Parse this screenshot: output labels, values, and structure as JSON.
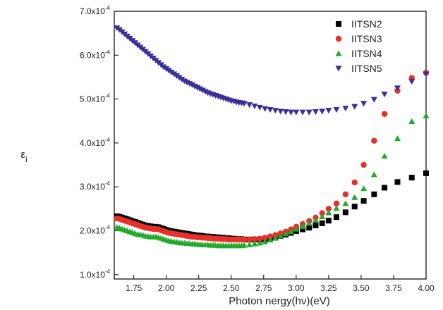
{
  "chart_data": {
    "type": "scatter",
    "xlabel": "Photon nergy(hν)(eV)",
    "ylabel": "ε",
    "ylabel_sub": "i",
    "xlim": [
      1.6,
      4.0
    ],
    "ylim": [
      9e-05,
      0.0007
    ],
    "xticks": [
      1.75,
      2.0,
      2.25,
      2.5,
      2.75,
      3.0,
      3.25,
      3.5,
      3.75,
      4.0
    ],
    "xtick_labels": [
      "1.75",
      "2.00",
      "2.25",
      "2.50",
      "2.75",
      "3.00",
      "3.25",
      "3.50",
      "3.75",
      "4.00"
    ],
    "yticks": [
      0.0001,
      0.0002,
      0.0003,
      0.0004,
      0.0005,
      0.0006,
      0.0007
    ],
    "ytick_labels": [
      {
        "mant": "1.0x10",
        "exp": "-4"
      },
      {
        "mant": "2.0x10",
        "exp": "-4"
      },
      {
        "mant": "3.0x10",
        "exp": "-4"
      },
      {
        "mant": "4.0x10",
        "exp": "-4"
      },
      {
        "mant": "5.0x10",
        "exp": "-4"
      },
      {
        "mant": "6.0x10",
        "exp": "-4"
      },
      {
        "mant": "7.0x10",
        "exp": "-4"
      }
    ],
    "legend_position": "top-right",
    "series": [
      {
        "name": "IITSN2",
        "marker": "square",
        "color": "#000000",
        "x": [
          1.62,
          1.64,
          1.66,
          1.68,
          1.7,
          1.72,
          1.74,
          1.76,
          1.78,
          1.8,
          1.82,
          1.84,
          1.86,
          1.88,
          1.9,
          1.92,
          1.94,
          1.96,
          1.98,
          2.0,
          2.02,
          2.04,
          2.06,
          2.08,
          2.1,
          2.12,
          2.14,
          2.16,
          2.18,
          2.2,
          2.22,
          2.24,
          2.26,
          2.28,
          2.3,
          2.32,
          2.34,
          2.36,
          2.38,
          2.4,
          2.42,
          2.44,
          2.46,
          2.48,
          2.5,
          2.52,
          2.54,
          2.56,
          2.58,
          2.6,
          2.64,
          2.68,
          2.72,
          2.76,
          2.8,
          2.84,
          2.88,
          2.92,
          2.96,
          3.0,
          3.05,
          3.1,
          3.15,
          3.2,
          3.25,
          3.31,
          3.38,
          3.45,
          3.52,
          3.6,
          3.68,
          3.78,
          3.89,
          4.0
        ],
        "y": [
          0.000233,
          0.000232,
          0.00023,
          0.000228,
          0.000226,
          0.000224,
          0.000222,
          0.00022,
          0.000218,
          0.000216,
          0.000214,
          0.000212,
          0.000211,
          0.00021,
          0.000209,
          0.000209,
          0.000208,
          0.000206,
          0.000204,
          0.000202,
          0.0002,
          0.000199,
          0.000198,
          0.000197,
          0.000196,
          0.000195,
          0.000194,
          0.000193,
          0.000192,
          0.000191,
          0.00019,
          0.000189,
          0.000189,
          0.000188,
          0.000187,
          0.000187,
          0.000186,
          0.000186,
          0.000185,
          0.000185,
          0.000184,
          0.000184,
          0.000183,
          0.000183,
          0.000182,
          0.000182,
          0.000181,
          0.000181,
          0.000181,
          0.00018,
          0.00018,
          0.00018,
          0.00018,
          0.000181,
          0.000183,
          0.000185,
          0.000188,
          0.000191,
          0.000195,
          0.000199,
          0.000203,
          0.000207,
          0.000212,
          0.000217,
          0.000223,
          0.000231,
          0.000242,
          0.000255,
          0.000268,
          0.000283,
          0.000298,
          0.000311,
          0.000321,
          0.000331
        ]
      },
      {
        "name": "IITSN3",
        "marker": "circle",
        "color": "#e8302a",
        "x": [
          1.62,
          1.64,
          1.66,
          1.68,
          1.7,
          1.72,
          1.74,
          1.76,
          1.78,
          1.8,
          1.82,
          1.84,
          1.86,
          1.88,
          1.9,
          1.92,
          1.94,
          1.96,
          1.98,
          2.0,
          2.02,
          2.04,
          2.06,
          2.08,
          2.1,
          2.12,
          2.14,
          2.16,
          2.18,
          2.2,
          2.22,
          2.24,
          2.26,
          2.28,
          2.3,
          2.32,
          2.34,
          2.36,
          2.38,
          2.4,
          2.42,
          2.44,
          2.46,
          2.48,
          2.5,
          2.52,
          2.54,
          2.56,
          2.58,
          2.6,
          2.64,
          2.68,
          2.72,
          2.76,
          2.8,
          2.84,
          2.88,
          2.92,
          2.96,
          3.0,
          3.05,
          3.1,
          3.15,
          3.2,
          3.25,
          3.31,
          3.38,
          3.45,
          3.52,
          3.6,
          3.68,
          3.78,
          3.89,
          4.0
        ],
        "y": [
          0.000228,
          0.000227,
          0.000225,
          0.000223,
          0.000221,
          0.000219,
          0.000217,
          0.000215,
          0.000213,
          0.000211,
          0.000209,
          0.000207,
          0.000206,
          0.000205,
          0.000204,
          0.000204,
          0.000203,
          0.000201,
          0.000199,
          0.000197,
          0.000195,
          0.000194,
          0.000193,
          0.000192,
          0.000191,
          0.00019,
          0.000189,
          0.000188,
          0.000187,
          0.000186,
          0.000186,
          0.000185,
          0.000185,
          0.000184,
          0.000184,
          0.000183,
          0.000183,
          0.000182,
          0.000182,
          0.000182,
          0.000181,
          0.000181,
          0.000181,
          0.00018,
          0.00018,
          0.00018,
          0.00018,
          0.00018,
          0.00018,
          0.00018,
          0.00018,
          0.000181,
          0.000182,
          0.000184,
          0.000187,
          0.00019,
          0.000194,
          0.000198,
          0.000203,
          0.000209,
          0.000215,
          0.000222,
          0.00023,
          0.00024,
          0.00025,
          0.000262,
          0.000283,
          0.00031,
          0.00035,
          0.000405,
          0.000466,
          0.000519,
          0.000548,
          0.00056
        ]
      },
      {
        "name": "IITSN4",
        "marker": "triangle-up",
        "color": "#22aa2a",
        "x": [
          1.62,
          1.64,
          1.66,
          1.68,
          1.7,
          1.72,
          1.74,
          1.76,
          1.78,
          1.8,
          1.82,
          1.84,
          1.86,
          1.88,
          1.9,
          1.92,
          1.94,
          1.96,
          1.98,
          2.0,
          2.02,
          2.04,
          2.06,
          2.08,
          2.1,
          2.12,
          2.14,
          2.16,
          2.18,
          2.2,
          2.22,
          2.24,
          2.26,
          2.28,
          2.3,
          2.32,
          2.34,
          2.36,
          2.38,
          2.4,
          2.42,
          2.44,
          2.46,
          2.48,
          2.5,
          2.52,
          2.54,
          2.56,
          2.58,
          2.6,
          2.64,
          2.68,
          2.72,
          2.76,
          2.8,
          2.84,
          2.88,
          2.92,
          2.96,
          3.0,
          3.05,
          3.1,
          3.15,
          3.2,
          3.25,
          3.31,
          3.38,
          3.45,
          3.52,
          3.6,
          3.68,
          3.78,
          3.89,
          4.0
        ],
        "y": [
          0.000208,
          0.000206,
          0.000204,
          0.000202,
          0.0002,
          0.000198,
          0.000196,
          0.000194,
          0.000192,
          0.000191,
          0.00019,
          0.000188,
          0.000187,
          0.000186,
          0.000186,
          0.000186,
          0.000185,
          0.000183,
          0.000181,
          0.000179,
          0.000177,
          0.000176,
          0.000175,
          0.000174,
          0.000173,
          0.000172,
          0.000172,
          0.000171,
          0.000171,
          0.00017,
          0.00017,
          0.000169,
          0.000169,
          0.000168,
          0.000168,
          0.000168,
          0.000167,
          0.000167,
          0.000167,
          0.000166,
          0.000166,
          0.000166,
          0.000166,
          0.000166,
          0.000166,
          0.000166,
          0.000166,
          0.000166,
          0.000166,
          0.000167,
          0.000168,
          0.00017,
          0.000172,
          0.000175,
          0.000179,
          0.000183,
          0.000188,
          0.000193,
          0.000198,
          0.000204,
          0.00021,
          0.000217,
          0.000224,
          0.000232,
          0.000241,
          0.000251,
          0.000262,
          0.000276,
          0.000296,
          0.000328,
          0.00037,
          0.00041,
          0.000449,
          0.000462
        ]
      },
      {
        "name": "IITSN5",
        "marker": "triangle-down",
        "color": "#3a2f9a",
        "x": [
          1.62,
          1.64,
          1.66,
          1.68,
          1.7,
          1.72,
          1.74,
          1.76,
          1.78,
          1.8,
          1.82,
          1.84,
          1.86,
          1.88,
          1.9,
          1.92,
          1.94,
          1.96,
          1.98,
          2.0,
          2.02,
          2.04,
          2.06,
          2.08,
          2.1,
          2.12,
          2.14,
          2.16,
          2.18,
          2.2,
          2.22,
          2.24,
          2.26,
          2.28,
          2.3,
          2.32,
          2.34,
          2.36,
          2.38,
          2.4,
          2.42,
          2.44,
          2.46,
          2.48,
          2.5,
          2.52,
          2.54,
          2.56,
          2.58,
          2.6,
          2.64,
          2.68,
          2.72,
          2.76,
          2.8,
          2.84,
          2.88,
          2.92,
          2.96,
          3.0,
          3.05,
          3.1,
          3.15,
          3.2,
          3.25,
          3.31,
          3.38,
          3.45,
          3.52,
          3.6,
          3.68,
          3.78,
          3.89,
          4.0
        ],
        "y": [
          0.000662,
          0.000658,
          0.000653,
          0.000648,
          0.000643,
          0.000638,
          0.000633,
          0.000628,
          0.000623,
          0.000618,
          0.000613,
          0.000608,
          0.000603,
          0.000598,
          0.000593,
          0.000588,
          0.000583,
          0.000578,
          0.000573,
          0.000569,
          0.000565,
          0.000561,
          0.000557,
          0.000553,
          0.000549,
          0.000545,
          0.000541,
          0.000538,
          0.000535,
          0.000532,
          0.000529,
          0.000526,
          0.000523,
          0.00052,
          0.000517,
          0.000514,
          0.000512,
          0.00051,
          0.000508,
          0.000506,
          0.000504,
          0.000502,
          0.0005,
          0.000498,
          0.000496,
          0.000495,
          0.000493,
          0.000492,
          0.000491,
          0.00049,
          0.000487,
          0.000484,
          0.000481,
          0.000478,
          0.000476,
          0.000474,
          0.000472,
          0.000471,
          0.00047,
          0.00047,
          0.00047,
          0.00047,
          0.000471,
          0.000472,
          0.000474,
          0.000476,
          0.000479,
          0.000483,
          0.00049,
          0.000499,
          0.000511,
          0.000525,
          0.00054,
          0.000557
        ]
      }
    ]
  }
}
